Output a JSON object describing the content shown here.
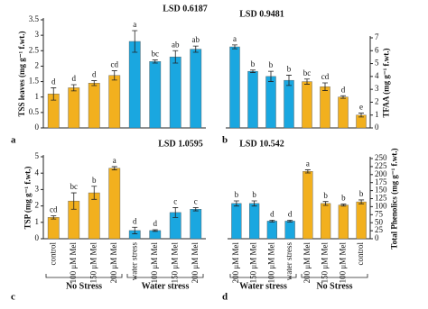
{
  "chart_data": [
    {
      "type": "bar",
      "panel_label": "a",
      "title": "LSD 0.6187",
      "y_label": "TSS leaves (mg g⁻¹ f.wt.)",
      "y_axis_side": "left",
      "categories": [
        null,
        null,
        null,
        null,
        null,
        null,
        null,
        null
      ],
      "values": [
        1.1,
        1.3,
        1.45,
        1.7,
        2.8,
        2.15,
        2.3,
        2.55
      ],
      "errors": [
        0.2,
        0.1,
        0.08,
        0.15,
        0.35,
        0.05,
        0.2,
        0.1
      ],
      "letters": [
        "d",
        "d",
        "d",
        "cd",
        "a",
        "bc",
        "ab",
        "ab"
      ],
      "colors": [
        "#f2b01e",
        "#f2b01e",
        "#f2b01e",
        "#f2b01e",
        "#1aa7e0",
        "#1aa7e0",
        "#1aa7e0",
        "#1aa7e0"
      ],
      "ylim": [
        0,
        3.5
      ],
      "yticks": [
        0,
        0.5,
        1,
        1.5,
        2,
        2.5,
        3,
        3.5
      ]
    },
    {
      "type": "bar",
      "panel_label": "b",
      "title": "LSD 0.9481",
      "y_label": "TFAA (mg g⁻¹ f.wt.)",
      "y_axis_side": "right",
      "categories": [
        null,
        null,
        null,
        null,
        null,
        null,
        null,
        null
      ],
      "values": [
        6.3,
        4.4,
        4.0,
        3.7,
        3.6,
        3.2,
        2.4,
        1.0
      ],
      "errors": [
        0.15,
        0.1,
        0.4,
        0.4,
        0.2,
        0.3,
        0.1,
        0.15
      ],
      "letters": [
        "a",
        "b",
        "b",
        "b",
        "bc",
        "cd",
        "d",
        "e"
      ],
      "colors": [
        "#1aa7e0",
        "#1aa7e0",
        "#1aa7e0",
        "#1aa7e0",
        "#f2b01e",
        "#f2b01e",
        "#f2b01e",
        "#f2b01e"
      ],
      "ylim": [
        0,
        7
      ],
      "yticks": [
        0,
        1,
        2,
        3,
        4,
        5,
        6,
        7
      ]
    },
    {
      "type": "bar",
      "panel_label": "c",
      "title": "LSD 1.0595",
      "y_label": "TSP (mg g⁻¹ f.wt.)",
      "y_axis_side": "left",
      "categories": [
        "control",
        "100 μM Mel",
        "150 μM Mel",
        "200 μM Mel",
        "water stress",
        "100 μM Mel",
        "150 μM Mel",
        "200 μM Mel"
      ],
      "groups": [
        "No Stress",
        "Water stress"
      ],
      "values": [
        1.3,
        2.3,
        2.8,
        4.3,
        0.5,
        0.5,
        1.6,
        1.8
      ],
      "errors": [
        0.1,
        0.5,
        0.4,
        0.1,
        0.2,
        0.05,
        0.3,
        0.1
      ],
      "letters": [
        "cd",
        "bc",
        "b",
        "a",
        "d",
        "d",
        "c",
        "c"
      ],
      "colors": [
        "#f2b01e",
        "#f2b01e",
        "#f2b01e",
        "#f2b01e",
        "#1aa7e0",
        "#1aa7e0",
        "#1aa7e0",
        "#1aa7e0"
      ],
      "ylim": [
        0,
        5
      ],
      "yticks": [
        0,
        1,
        2,
        3,
        4,
        5
      ]
    },
    {
      "type": "bar",
      "panel_label": "d",
      "title": "LSD 10.542",
      "y_label": "Total Phenolics (mg g⁻¹ f.wt.)",
      "y_axis_side": "right",
      "categories": [
        "200 μM Mel",
        "150 μM Mel",
        "100 μM Mel",
        "water stress",
        "200 μM Mel",
        "150 μM Mel",
        "100 μM Mel",
        "control"
      ],
      "groups": [
        "Water stress",
        "No Stress"
      ],
      "values": [
        110,
        110,
        55,
        55,
        210,
        110,
        105,
        115
      ],
      "errors": [
        8,
        8,
        3,
        3,
        5,
        6,
        3,
        6
      ],
      "letters": [
        "b",
        "b",
        "d",
        "d",
        "a",
        "b",
        "b",
        "b"
      ],
      "colors": [
        "#1aa7e0",
        "#1aa7e0",
        "#1aa7e0",
        "#1aa7e0",
        "#f2b01e",
        "#f2b01e",
        "#f2b01e",
        "#f2b01e"
      ],
      "ylim": [
        0,
        250
      ],
      "yticks": [
        0,
        25,
        50,
        75,
        100,
        125,
        150,
        175,
        200,
        225,
        250
      ]
    }
  ]
}
